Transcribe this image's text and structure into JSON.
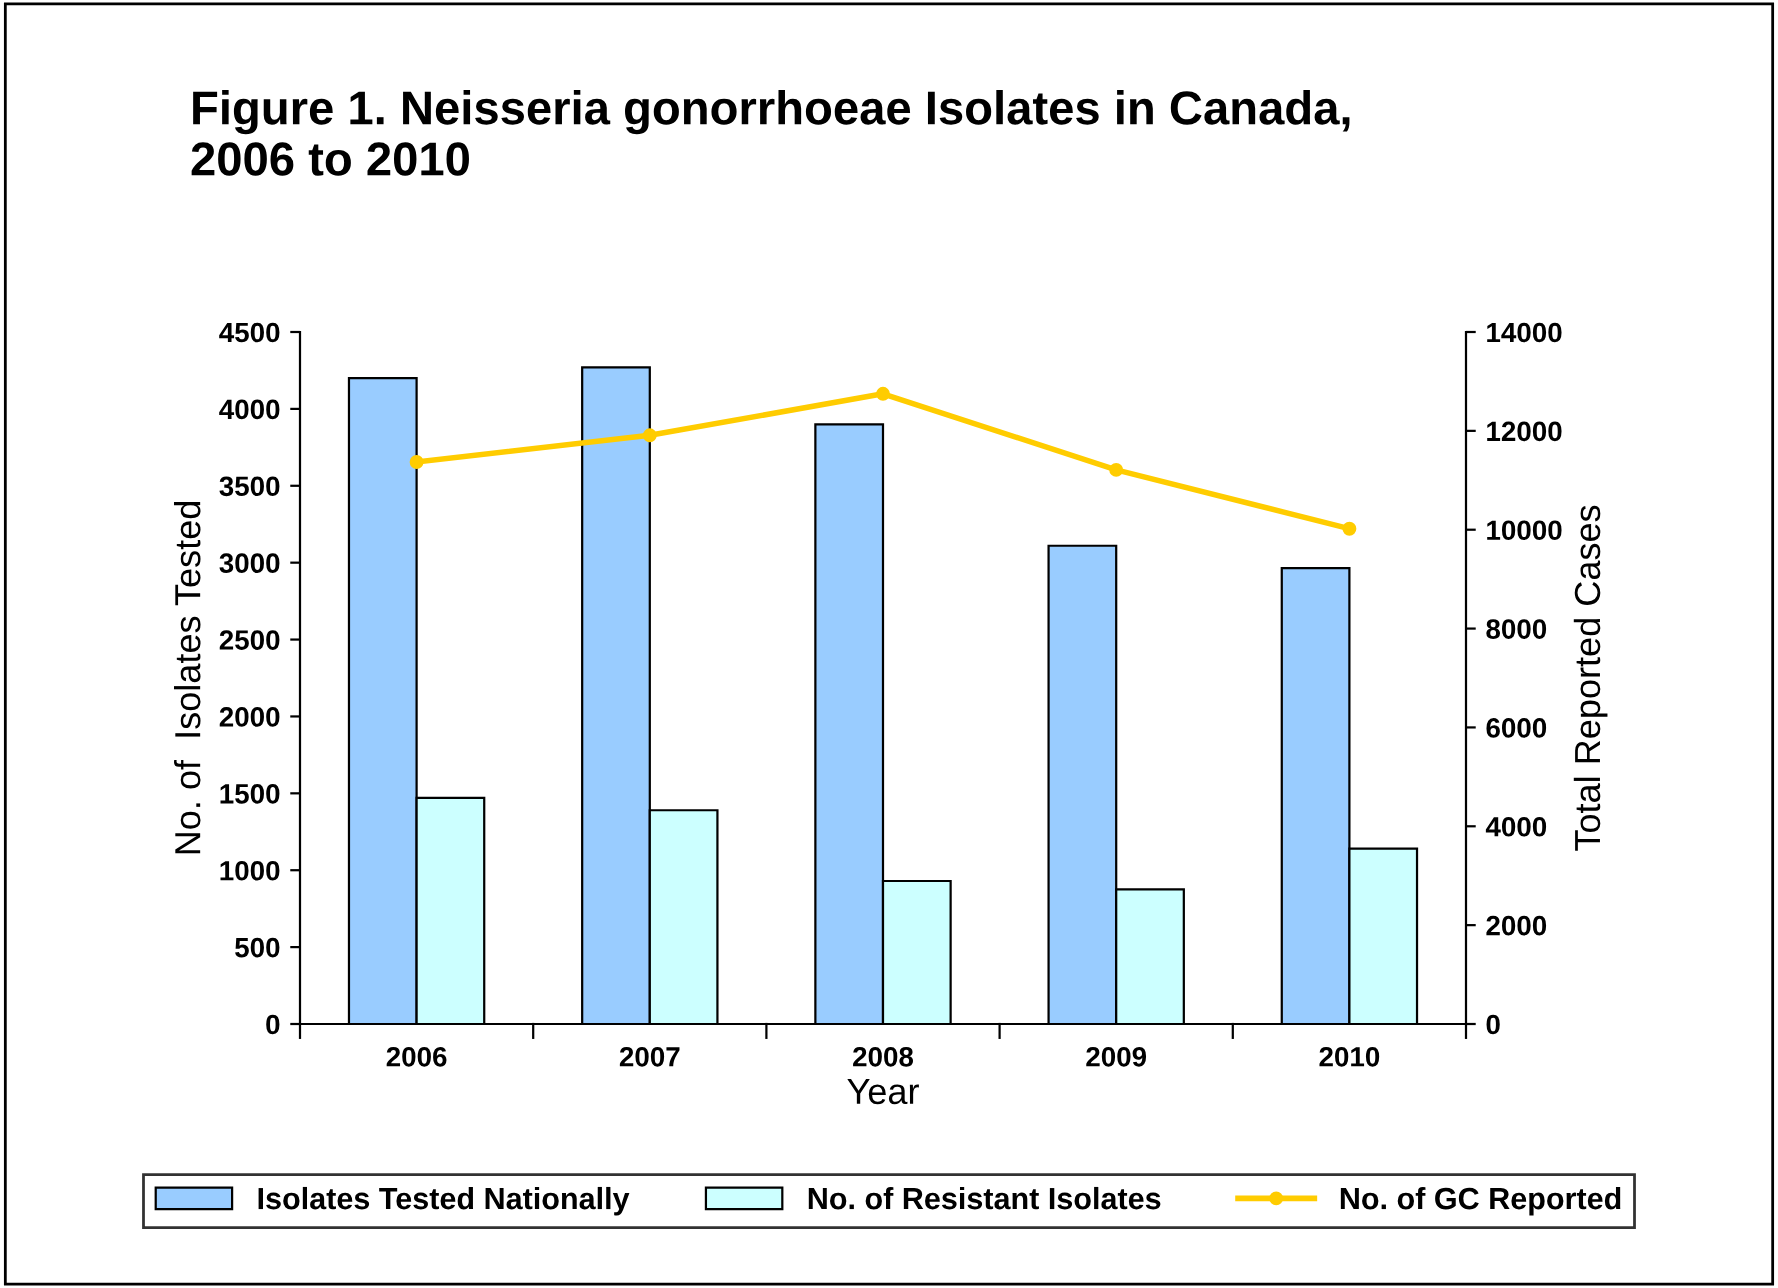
{
  "chart_data": {
    "type": "bar",
    "title": "Figure 1. Neisseria gonorrhoeae Isolates in Canada,\n2006 to 2010",
    "categories": [
      "2006",
      "2007",
      "2008",
      "2009",
      "2010"
    ],
    "xlabel": "Year",
    "ylabel": "No. of  Isolates Tested",
    "y2label": "Total Reported Cases",
    "series": [
      {
        "name": "Isolates Tested Nationally",
        "color": "#99ccff",
        "values": [
          4200,
          4270,
          3900,
          3110,
          2965
        ]
      },
      {
        "name": "No. of Resistant Isolates",
        "color": "#ccffff",
        "values": [
          1470,
          1390,
          930,
          875,
          1140
        ]
      },
      {
        "name": "No. of GC Reported",
        "type": "line",
        "axis": "y2",
        "color": "#ffcc00",
        "marker": "circle",
        "values": [
          11370,
          11910,
          12750,
          11210,
          10020
        ]
      }
    ],
    "ylim": [
      0,
      4500
    ],
    "yticks": [
      0,
      500,
      1000,
      1500,
      2000,
      2500,
      3000,
      3500,
      4000,
      4500
    ],
    "y2lim": [
      0,
      14000
    ],
    "y2ticks": [
      0,
      2000,
      4000,
      6000,
      8000,
      10000,
      12000,
      14000
    ],
    "legend": "bottom",
    "grid": false
  }
}
